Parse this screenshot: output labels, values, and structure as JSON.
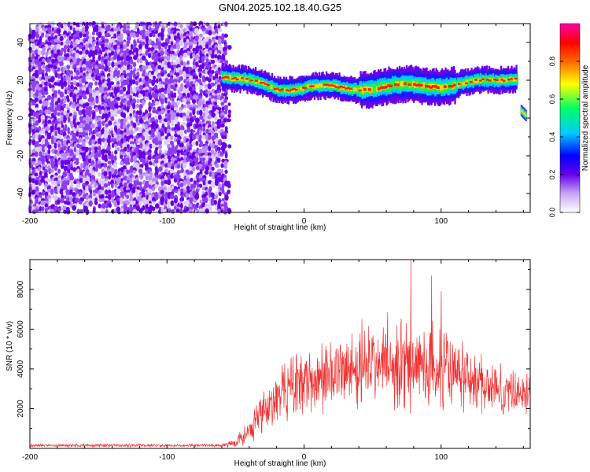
{
  "title": "GN04.2025.102.18.40.G25",
  "chart_data": [
    {
      "type": "heatmap",
      "xlabel": "Height of straight line (km)",
      "ylabel": "Frequency (Hz)",
      "xlim": [
        -200,
        165
      ],
      "ylim": [
        -50,
        50
      ],
      "xticks": [
        -200,
        -100,
        0,
        100
      ],
      "yticks": [
        40,
        20,
        0,
        -20,
        -40
      ],
      "colorbar": {
        "label": "Normalized spectral amplitude",
        "range": [
          0,
          1
        ],
        "ticks": [
          "0.0",
          "0.2",
          "0.4",
          "0.6",
          "0.8"
        ],
        "colors": [
          "#ffffff",
          "#8800ee",
          "#0000ff",
          "#00ccff",
          "#00ff66",
          "#ffff00",
          "#ff6600",
          "#ff0000",
          "#ff00aa"
        ]
      },
      "noise_region_x": [
        -200,
        -52
      ],
      "ridge": {
        "x": [
          -60,
          -50,
          -40,
          -30,
          -20,
          -10,
          0,
          10,
          20,
          40,
          60,
          80,
          100,
          120,
          140,
          155
        ],
        "y": [
          22,
          20,
          19,
          18,
          16,
          16,
          16,
          16,
          16,
          16,
          16.5,
          17,
          17.5,
          18.5,
          19.5,
          22
        ]
      },
      "secondary_ridge": {
        "x": [
          158,
          162
        ],
        "y": [
          4,
          1
        ]
      }
    },
    {
      "type": "line",
      "xlabel": "Height of straight line (km)",
      "ylabel": "SNR (10 * v/v)",
      "xlim": [
        -200,
        165
      ],
      "ylim": [
        0,
        9500
      ],
      "xticks": [
        -200,
        -100,
        0,
        100
      ],
      "yticks": [
        2000,
        4000,
        6000,
        8000
      ],
      "color": "#ee3333",
      "envelope": {
        "x": [
          -200,
          -60,
          -50,
          -40,
          -30,
          -20,
          -10,
          0,
          20,
          40,
          60,
          80,
          100,
          120,
          140,
          165
        ],
        "mean": [
          150,
          150,
          300,
          800,
          1800,
          2600,
          3000,
          3300,
          3800,
          4100,
          4300,
          4200,
          4000,
          3500,
          3000,
          2700
        ],
        "spread": [
          80,
          80,
          250,
          700,
          1200,
          1300,
          1500,
          1600,
          1800,
          2000,
          2200,
          2200,
          2000,
          1600,
          1300,
          1000
        ]
      },
      "peaks": [
        {
          "x": 78,
          "y": 9500
        },
        {
          "x": 93,
          "y": 8700
        },
        {
          "x": 100,
          "y": 7900
        }
      ]
    }
  ]
}
